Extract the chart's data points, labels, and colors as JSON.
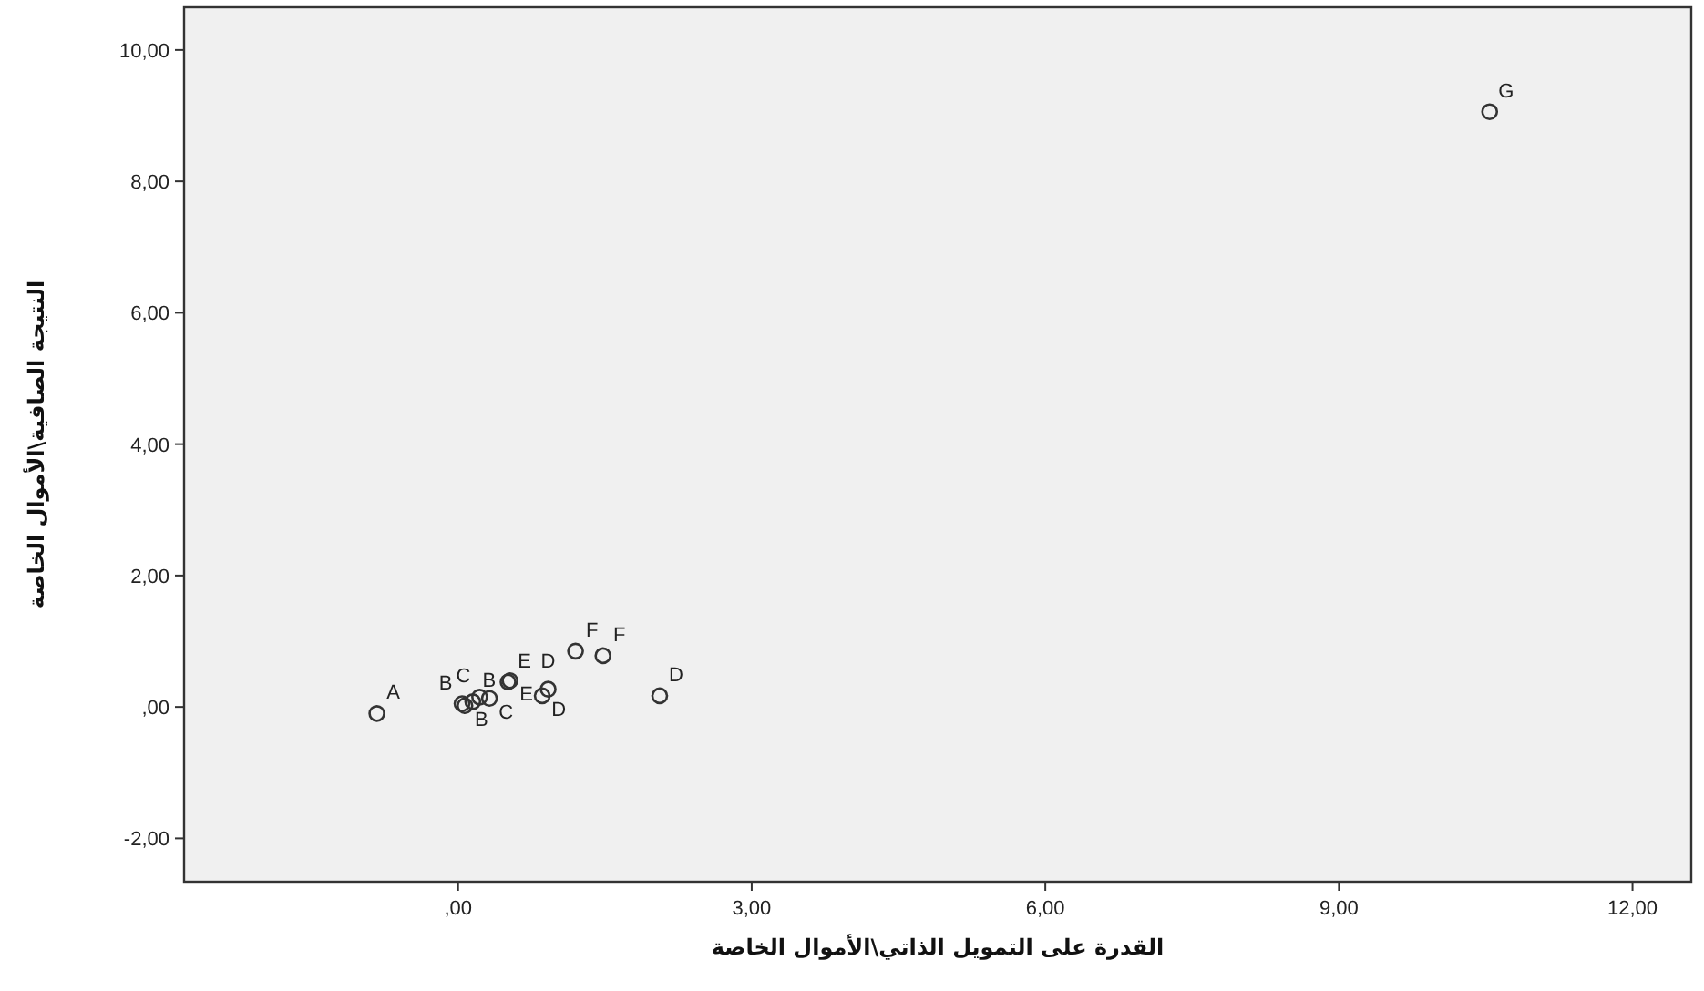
{
  "chart_data": {
    "type": "scatter",
    "xlabel": "القدرة على التمويل الذاتي\\الأموال الخاصة",
    "ylabel": "النتيجة الصافية\\الأموال الخاصة",
    "x": [
      -0.83,
      0.07,
      0.04,
      0.15,
      0.22,
      0.32,
      0.51,
      0.53,
      0.86,
      0.92,
      1.2,
      1.48,
      2.06,
      10.54
    ],
    "values": [
      -0.1,
      0.02,
      0.05,
      0.08,
      0.15,
      0.13,
      0.38,
      0.4,
      0.17,
      0.27,
      0.85,
      0.78,
      0.17,
      9.06
    ],
    "color": "#333333",
    "marker": "circle",
    "xlim": [
      -2.8,
      12.6
    ],
    "ylim": [
      -2.66,
      10.65
    ],
    "xticks": [
      {
        "value": 0,
        "label": ",00"
      },
      {
        "value": 3,
        "label": "3,00"
      },
      {
        "value": 6,
        "label": "6,00"
      },
      {
        "value": 9,
        "label": "9,00"
      },
      {
        "value": 12,
        "label": "12,00"
      }
    ],
    "yticks": [
      {
        "value": -2,
        "label": "-2,00"
      },
      {
        "value": 0,
        "label": ",00"
      },
      {
        "value": 2,
        "label": "2,00"
      },
      {
        "value": 4,
        "label": "4,00"
      },
      {
        "value": 6,
        "label": "6,00"
      },
      {
        "value": 8,
        "label": "8,00"
      },
      {
        "value": 10,
        "label": "10,00"
      }
    ],
    "annotations": [
      {
        "text": "A",
        "x": -0.83,
        "y": -0.1
      },
      {
        "text": "B",
        "x": 0.04,
        "y": 0.05
      },
      {
        "text": "B",
        "x": 0.07,
        "y": 0.02
      },
      {
        "text": "B",
        "x": 0.15,
        "y": 0.08
      },
      {
        "text": "C",
        "x": 0.22,
        "y": 0.15
      },
      {
        "text": "C",
        "x": 0.32,
        "y": 0.13
      },
      {
        "text": "E",
        "x": 0.51,
        "y": 0.38
      },
      {
        "text": "E",
        "x": 0.53,
        "y": 0.4
      },
      {
        "text": "D",
        "x": 0.86,
        "y": 0.17
      },
      {
        "text": "D",
        "x": 0.92,
        "y": 0.27
      },
      {
        "text": "F",
        "x": 1.2,
        "y": 0.85
      },
      {
        "text": "F",
        "x": 1.48,
        "y": 0.78
      },
      {
        "text": "D",
        "x": 2.06,
        "y": 0.17
      },
      {
        "text": "G",
        "x": 10.54,
        "y": 9.06
      }
    ]
  }
}
